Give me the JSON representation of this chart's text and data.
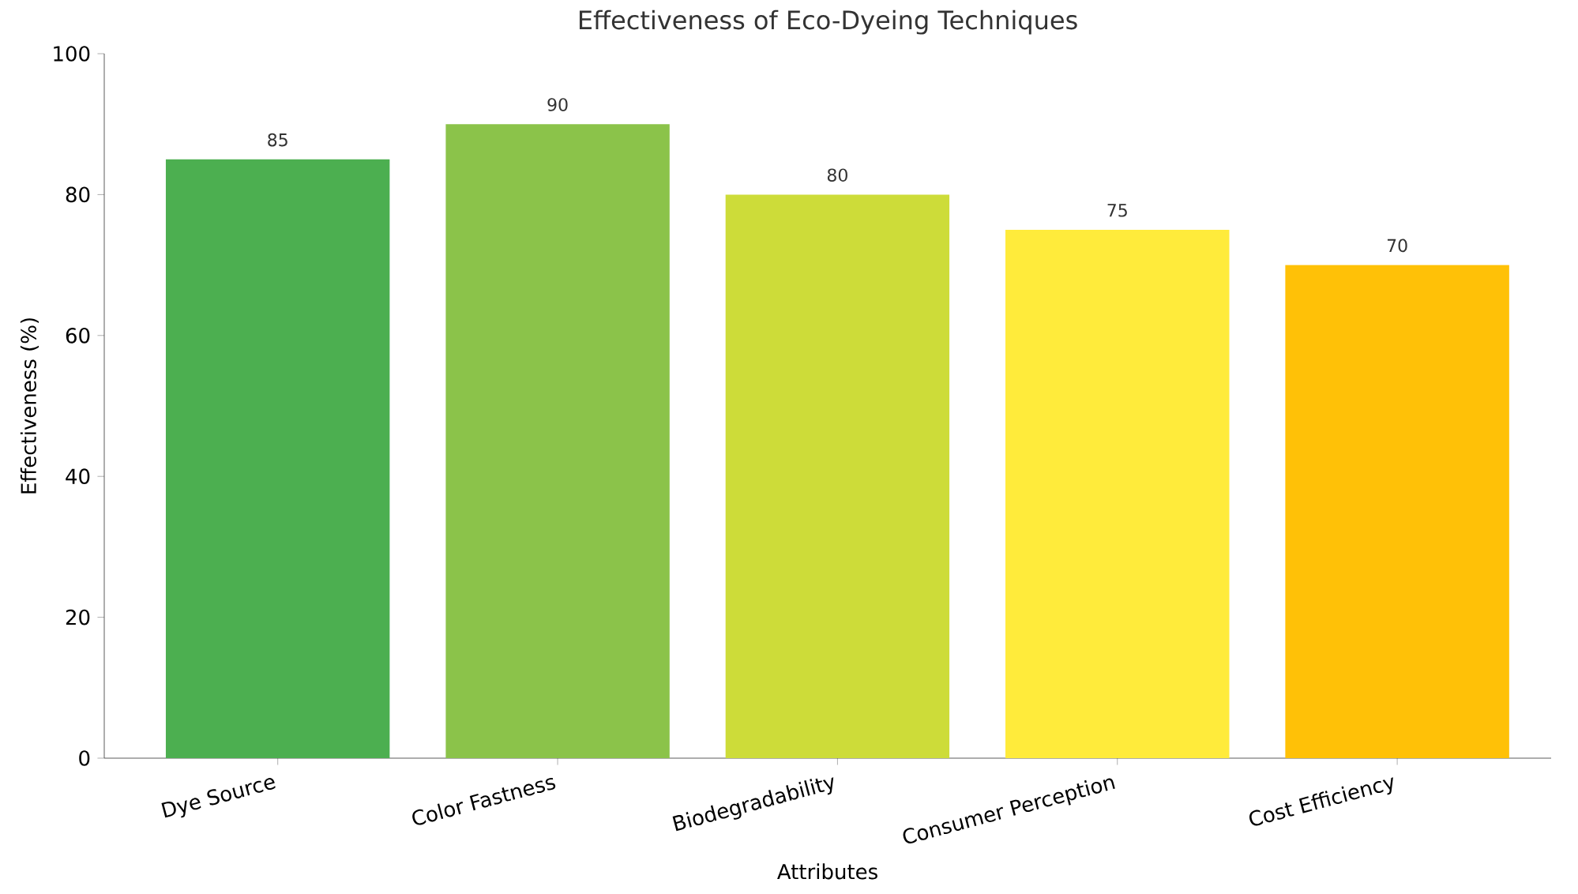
{
  "chart_data": {
    "type": "bar",
    "title": "Effectiveness of Eco-Dyeing Techniques",
    "xlabel": "Attributes",
    "ylabel": "Effectiveness (%)",
    "categories": [
      "Dye Source",
      "Color Fastness",
      "Biodegradability",
      "Consumer Perception",
      "Cost Efficiency"
    ],
    "values": [
      85,
      90,
      80,
      75,
      70
    ],
    "colors": [
      "#4caf50",
      "#8bc34a",
      "#cddc39",
      "#ffeb3b",
      "#ffc107"
    ],
    "ylim": [
      0,
      100
    ],
    "yticks": [
      0,
      20,
      40,
      60,
      80,
      100
    ],
    "data_labels": true,
    "grid": false
  }
}
